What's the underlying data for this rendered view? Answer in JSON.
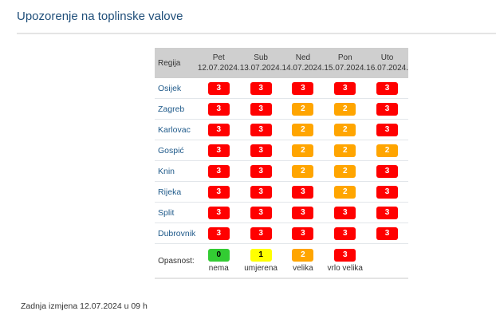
{
  "page": {
    "title": "Upozorenje na toplinske valove"
  },
  "table": {
    "region_header": "Regija",
    "days": [
      {
        "day": "Pet",
        "date": "12.07.2024."
      },
      {
        "day": "Sub",
        "date": "13.07.2024."
      },
      {
        "day": "Ned",
        "date": "14.07.2024."
      },
      {
        "day": "Pon",
        "date": "15.07.2024."
      },
      {
        "day": "Uto",
        "date": "16.07.2024."
      }
    ],
    "rows": [
      {
        "region": "Osijek",
        "levels": [
          "3",
          "3",
          "3",
          "3",
          "3"
        ]
      },
      {
        "region": "Zagreb",
        "levels": [
          "3",
          "3",
          "2",
          "2",
          "3"
        ]
      },
      {
        "region": "Karlovac",
        "levels": [
          "3",
          "3",
          "2",
          "2",
          "3"
        ]
      },
      {
        "region": "Gospić",
        "levels": [
          "3",
          "3",
          "2",
          "2",
          "2"
        ]
      },
      {
        "region": "Knin",
        "levels": [
          "3",
          "3",
          "2",
          "2",
          "3"
        ]
      },
      {
        "region": "Rijeka",
        "levels": [
          "3",
          "3",
          "3",
          "2",
          "3"
        ]
      },
      {
        "region": "Split",
        "levels": [
          "3",
          "3",
          "3",
          "3",
          "3"
        ]
      },
      {
        "region": "Dubrovnik",
        "levels": [
          "3",
          "3",
          "3",
          "3",
          "3"
        ]
      }
    ]
  },
  "legend": {
    "label": "Opasnost:",
    "items": [
      {
        "level": "0",
        "label": "nema",
        "color": "#33cc33"
      },
      {
        "level": "1",
        "label": "umjerena",
        "color": "#ffff00"
      },
      {
        "level": "2",
        "label": "velika",
        "color": "#ffa500"
      },
      {
        "level": "3",
        "label": "vrlo velika",
        "color": "#ff0000"
      }
    ]
  },
  "footer": {
    "last_modified": "Zadnja izmjena 12.07.2024 u 09 h"
  }
}
